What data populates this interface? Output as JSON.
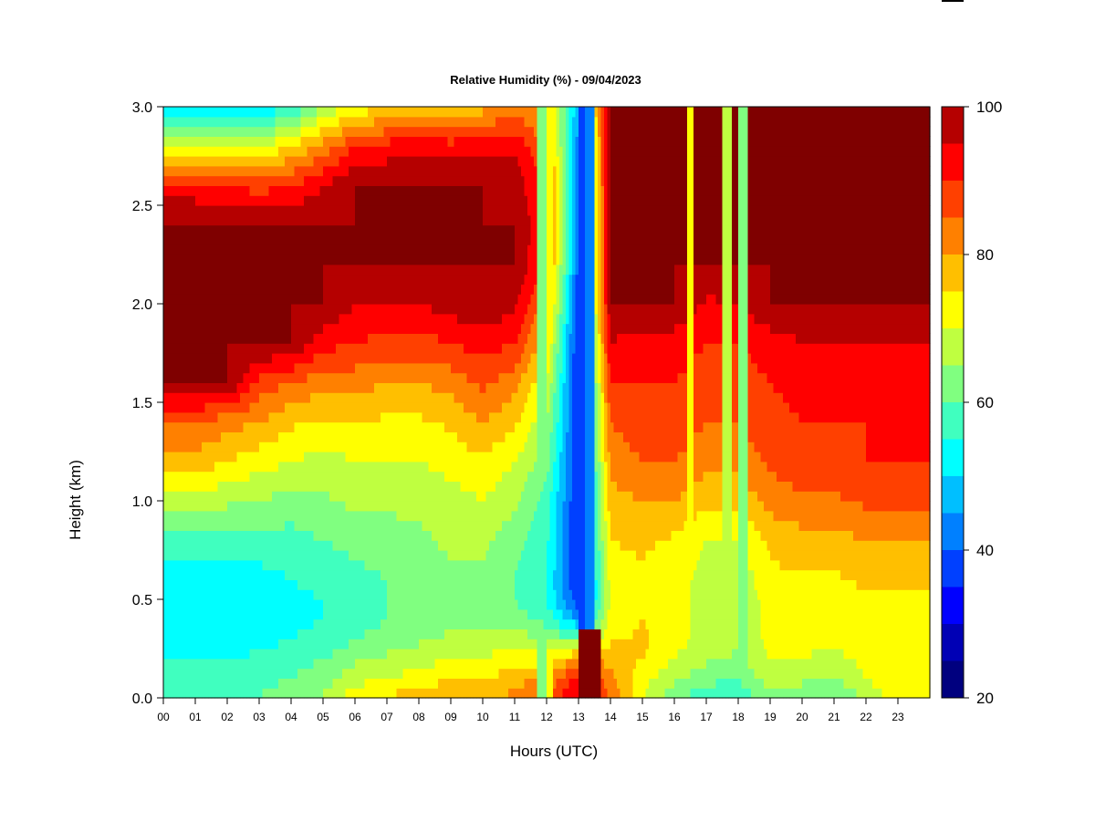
{
  "chart_data": {
    "type": "heatmap",
    "title": "Relative Humidity (%) - 09/04/2023",
    "xlabel": "Hours (UTC)",
    "ylabel": "Height (km)",
    "x_range": [
      0,
      24
    ],
    "y_range": [
      0,
      3
    ],
    "xticks": [
      "00",
      "01",
      "02",
      "03",
      "04",
      "05",
      "06",
      "07",
      "08",
      "09",
      "10",
      "11",
      "12",
      "13",
      "14",
      "15",
      "16",
      "17",
      "18",
      "19",
      "20",
      "21",
      "22",
      "23"
    ],
    "yticks": [
      "0.0",
      "0.5",
      "1.0",
      "1.5",
      "2.0",
      "2.5",
      "3.0"
    ],
    "colorbar": {
      "range": [
        20,
        100
      ],
      "ticks": [
        "20",
        "40",
        "60",
        "80",
        "100"
      ],
      "levels": [
        {
          "min": 20,
          "max": 25,
          "color": "#00007f"
        },
        {
          "min": 25,
          "max": 30,
          "color": "#0000b5"
        },
        {
          "min": 30,
          "max": 35,
          "color": "#0000ff"
        },
        {
          "min": 35,
          "max": 40,
          "color": "#0040ff"
        },
        {
          "min": 40,
          "max": 45,
          "color": "#0080ff"
        },
        {
          "min": 45,
          "max": 50,
          "color": "#00bfff"
        },
        {
          "min": 50,
          "max": 55,
          "color": "#00ffff"
        },
        {
          "min": 55,
          "max": 60,
          "color": "#40ffbf"
        },
        {
          "min": 60,
          "max": 65,
          "color": "#80ff80"
        },
        {
          "min": 65,
          "max": 70,
          "color": "#bfff40"
        },
        {
          "min": 70,
          "max": 75,
          "color": "#ffff00"
        },
        {
          "min": 75,
          "max": 80,
          "color": "#ffbf00"
        },
        {
          "min": 80,
          "max": 85,
          "color": "#ff8000"
        },
        {
          "min": 85,
          "max": 90,
          "color": "#ff4000"
        },
        {
          "min": 90,
          "max": 95,
          "color": "#ff0000"
        },
        {
          "min": 95,
          "max": 100,
          "color": "#b50000"
        },
        {
          "min": 100,
          "max": 105,
          "color": "#7f0000"
        }
      ]
    },
    "grid": false,
    "legend": "colorbar-right",
    "heights_km": [
      0.0,
      0.1,
      0.2,
      0.3,
      0.4,
      0.5,
      0.6,
      0.8,
      1.0,
      1.2,
      1.4,
      1.6,
      1.8,
      2.0,
      2.2,
      2.4,
      2.6,
      2.8,
      3.0
    ],
    "profiles": [
      {
        "hour": 0,
        "rh": [
          55,
          55,
          55,
          52,
          50,
          50,
          52,
          58,
          68,
          78,
          85,
          100,
          100,
          100,
          100,
          100,
          92,
          72,
          48
        ]
      },
      {
        "hour": 1,
        "rh": [
          55,
          55,
          55,
          52,
          50,
          50,
          52,
          58,
          68,
          78,
          85,
          100,
          100,
          100,
          100,
          100,
          92,
          72,
          48
        ]
      },
      {
        "hour": 2,
        "rh": [
          58,
          56,
          55,
          52,
          50,
          50,
          52,
          58,
          66,
          75,
          82,
          100,
          100,
          100,
          100,
          100,
          90,
          70,
          48
        ]
      },
      {
        "hour": 3,
        "rh": [
          60,
          58,
          56,
          53,
          52,
          52,
          53,
          58,
          65,
          72,
          80,
          88,
          100,
          100,
          100,
          100,
          88,
          70,
          50
        ]
      },
      {
        "hour": 4,
        "rh": [
          64,
          60,
          58,
          55,
          54,
          54,
          55,
          58,
          63,
          70,
          76,
          85,
          100,
          100,
          100,
          100,
          90,
          75,
          55
        ]
      },
      {
        "hour": 5,
        "rh": [
          66,
          62,
          60,
          56,
          55,
          55,
          56,
          60,
          64,
          68,
          74,
          82,
          92,
          100,
          100,
          100,
          95,
          82,
          65
        ]
      },
      {
        "hour": 6,
        "rh": [
          74,
          68,
          64,
          60,
          58,
          58,
          58,
          62,
          66,
          70,
          75,
          82,
          90,
          95,
          100,
          100,
          100,
          90,
          72
        ]
      },
      {
        "hour": 7,
        "rh": [
          76,
          70,
          66,
          62,
          60,
          60,
          60,
          63,
          66,
          70,
          74,
          80,
          88,
          95,
          100,
          100,
          100,
          92,
          74
        ]
      },
      {
        "hour": 8,
        "rh": [
          78,
          72,
          68,
          64,
          62,
          62,
          62,
          64,
          66,
          70,
          74,
          80,
          88,
          95,
          100,
          100,
          100,
          94,
          76
        ]
      },
      {
        "hour": 9,
        "rh": [
          82,
          74,
          70,
          66,
          64,
          64,
          64,
          66,
          68,
          72,
          76,
          82,
          90,
          97,
          100,
          100,
          100,
          92,
          74
        ]
      },
      {
        "hour": 10,
        "rh": [
          78,
          74,
          70,
          66,
          64,
          64,
          64,
          66,
          70,
          74,
          80,
          86,
          92,
          100,
          100,
          100,
          100,
          94,
          78
        ]
      },
      {
        "hour": 11,
        "rh": [
          82,
          78,
          74,
          68,
          62,
          60,
          60,
          62,
          66,
          70,
          76,
          82,
          90,
          96,
          100,
          100,
          98,
          94,
          82
        ]
      },
      {
        "hour": 12,
        "rh": [
          88,
          80,
          72,
          64,
          58,
          55,
          55,
          56,
          58,
          62,
          66,
          70,
          76,
          82,
          88,
          90,
          88,
          84,
          80
        ]
      },
      {
        "hour": 13,
        "rh": [
          95,
          92,
          82,
          60,
          45,
          36,
          34,
          34,
          34,
          34,
          34,
          34,
          34,
          36,
          38,
          40,
          40,
          42,
          45
        ]
      },
      {
        "hour": 14,
        "rh": [
          85,
          82,
          78,
          74,
          72,
          70,
          72,
          75,
          78,
          82,
          85,
          90,
          95,
          100,
          100,
          100,
          100,
          100,
          100
        ]
      },
      {
        "hour": 15,
        "rh": [
          70,
          72,
          75,
          76,
          75,
          74,
          74,
          76,
          80,
          85,
          88,
          90,
          92,
          100,
          100,
          100,
          100,
          100,
          100
        ]
      },
      {
        "hour": 16,
        "rh": [
          62,
          66,
          70,
          72,
          72,
          72,
          72,
          74,
          80,
          85,
          88,
          90,
          92,
          100,
          100,
          100,
          100,
          100,
          100
        ]
      },
      {
        "hour": 17,
        "rh": [
          56,
          62,
          66,
          68,
          68,
          68,
          68,
          70,
          76,
          82,
          85,
          88,
          90,
          94,
          100,
          100,
          100,
          100,
          100
        ]
      },
      {
        "hour": 18,
        "rh": [
          56,
          60,
          64,
          66,
          66,
          66,
          66,
          70,
          76,
          82,
          85,
          88,
          90,
          95,
          100,
          100,
          100,
          100,
          100
        ]
      },
      {
        "hour": 19,
        "rh": [
          64,
          68,
          70,
          72,
          72,
          72,
          74,
          76,
          82,
          86,
          88,
          90,
          92,
          100,
          100,
          100,
          100,
          100,
          100
        ]
      },
      {
        "hour": 20,
        "rh": [
          62,
          66,
          70,
          72,
          72,
          72,
          74,
          78,
          84,
          88,
          90,
          92,
          95,
          100,
          100,
          100,
          100,
          100,
          100
        ]
      },
      {
        "hour": 21,
        "rh": [
          60,
          64,
          68,
          72,
          72,
          72,
          74,
          78,
          84,
          88,
          90,
          92,
          95,
          100,
          100,
          100,
          100,
          100,
          100
        ]
      },
      {
        "hour": 22,
        "rh": [
          66,
          70,
          72,
          74,
          74,
          74,
          76,
          80,
          86,
          90,
          90,
          92,
          95,
          100,
          100,
          100,
          100,
          100,
          100
        ]
      },
      {
        "hour": 23,
        "rh": [
          72,
          74,
          74,
          74,
          74,
          74,
          76,
          80,
          86,
          90,
          90,
          92,
          95,
          100,
          100,
          100,
          100,
          100,
          100
        ]
      },
      {
        "hour": 24,
        "rh": [
          72,
          74,
          74,
          74,
          74,
          74,
          76,
          80,
          86,
          90,
          90,
          92,
          95,
          100,
          100,
          100,
          100,
          100,
          100
        ]
      }
    ],
    "vertical_features": [
      {
        "hour": 11.85,
        "rh": 62
      },
      {
        "hour": 12.05,
        "rh": 70
      },
      {
        "hour": 13.1,
        "rh": 36
      },
      {
        "hour": 13.35,
        "rh": 40
      },
      {
        "hour": 16.5,
        "rh": 72
      },
      {
        "hour": 17.65,
        "rh": 66
      },
      {
        "hour": 18.15,
        "rh": 62
      }
    ],
    "surface_feature": {
      "hour": 13.3,
      "max_height_km": 0.35,
      "rh": 100
    }
  }
}
